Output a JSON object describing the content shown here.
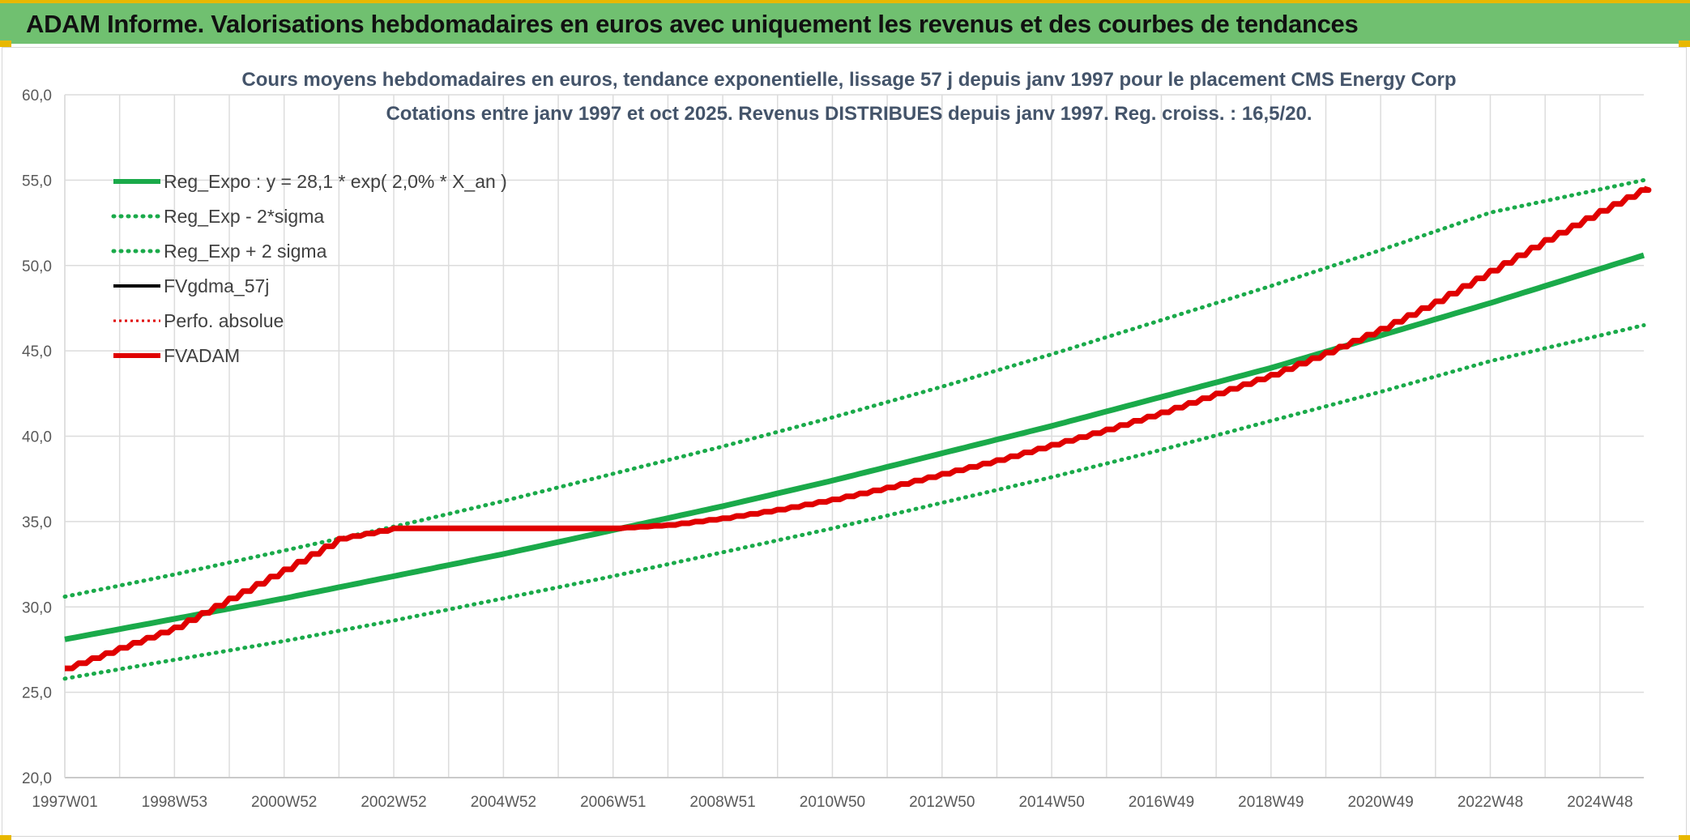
{
  "header": {
    "title": "ADAM Informe. Valorisations hebdomadaires en euros avec uniquement les revenus et des courbes de tendances"
  },
  "chart_data": {
    "type": "line",
    "title": "Cours moyens hebdomadaires en euros, tendance exponentielle, lissage 57 j depuis janv 1997 pour le placement CMS Energy Corp",
    "subtitle": "Cotations entre janv 1997 et oct 2025. Revenus DISTRIBUES depuis janv 1997. Reg. croiss. : 16,5/20.",
    "xlabel": "",
    "ylabel": "",
    "ylim": [
      20,
      60
    ],
    "yticks": [
      "20,0",
      "25,0",
      "30,0",
      "35,0",
      "40,0",
      "45,0",
      "50,0",
      "55,0",
      "60,0"
    ],
    "ytick_values": [
      20,
      25,
      30,
      35,
      40,
      45,
      50,
      55,
      60
    ],
    "xlim": [
      1997.0,
      2025.8
    ],
    "xticks": [
      "1997W01",
      "1998W53",
      "2000W52",
      "2002W52",
      "2004W52",
      "2006W51",
      "2008W51",
      "2010W50",
      "2012W50",
      "2014W50",
      "2016W49",
      "2018W49",
      "2020W49",
      "2022W48",
      "2024W48"
    ],
    "xtick_values": [
      1997.0,
      1999.0,
      2001.0,
      2003.0,
      2005.0,
      2007.0,
      2009.0,
      2011.0,
      2013.0,
      2015.0,
      2017.0,
      2019.0,
      2021.0,
      2023.0,
      2025.0
    ],
    "grid": true,
    "legend_position": "top-left",
    "series": [
      {
        "name": "Reg_Expo : y = 28,1 * exp( 2,0% *  X_an )",
        "color": "#1aaa4a",
        "style": "solid",
        "x": [
          1997.0,
          1999.0,
          2001.0,
          2003.0,
          2005.0,
          2007.0,
          2009.0,
          2011.0,
          2013.0,
          2015.0,
          2017.0,
          2019.0,
          2021.0,
          2023.0,
          2025.8
        ],
        "values": [
          28.1,
          29.3,
          30.5,
          31.8,
          33.1,
          34.5,
          35.9,
          37.4,
          39.0,
          40.6,
          42.3,
          44.0,
          45.9,
          47.8,
          50.6
        ]
      },
      {
        "name": "Reg_Exp - 2*sigma",
        "color": "#1aaa4a",
        "style": "dotted",
        "x": [
          1997.0,
          1999.0,
          2001.0,
          2003.0,
          2005.0,
          2007.0,
          2009.0,
          2011.0,
          2013.0,
          2015.0,
          2017.0,
          2019.0,
          2021.0,
          2023.0,
          2025.8
        ],
        "values": [
          25.8,
          26.9,
          28.0,
          29.2,
          30.5,
          31.8,
          33.2,
          34.6,
          36.1,
          37.6,
          39.2,
          40.9,
          42.6,
          44.4,
          46.5
        ]
      },
      {
        "name": "Reg_Exp + 2 sigma",
        "color": "#1aaa4a",
        "style": "dotted",
        "x": [
          1997.0,
          1999.0,
          2001.0,
          2003.0,
          2005.0,
          2007.0,
          2009.0,
          2011.0,
          2013.0,
          2015.0,
          2017.0,
          2019.0,
          2021.0,
          2023.0,
          2025.8
        ],
        "values": [
          30.6,
          31.9,
          33.3,
          34.7,
          36.2,
          37.8,
          39.4,
          41.1,
          42.9,
          44.8,
          46.8,
          48.8,
          50.9,
          53.1,
          55.0
        ]
      },
      {
        "name": "FVgdma_57j",
        "color": "#000000",
        "style": "solid",
        "x": [],
        "values": []
      },
      {
        "name": "Perfo. absolue",
        "color": "#e00000",
        "style": "dotted",
        "x": [],
        "values": []
      },
      {
        "name": "FVADAM",
        "color": "#e00000",
        "style": "solid-stepped",
        "x": [
          1997.0,
          1998.0,
          1999.0,
          2000.0,
          2001.0,
          2002.0,
          2003.0,
          2004.0,
          2005.0,
          2006.0,
          2007.0,
          2008.0,
          2009.0,
          2010.0,
          2011.0,
          2012.0,
          2013.0,
          2014.0,
          2015.0,
          2016.0,
          2017.0,
          2018.0,
          2019.0,
          2020.0,
          2021.0,
          2022.0,
          2023.0,
          2024.0,
          2025.0,
          2025.8
        ],
        "values": [
          26.4,
          27.6,
          28.8,
          30.5,
          32.2,
          34.0,
          34.6,
          34.6,
          34.6,
          34.6,
          34.6,
          34.8,
          35.2,
          35.7,
          36.3,
          37.0,
          37.8,
          38.6,
          39.5,
          40.4,
          41.4,
          42.5,
          43.6,
          44.9,
          46.3,
          47.9,
          49.7,
          51.5,
          53.2,
          54.5
        ]
      }
    ]
  }
}
